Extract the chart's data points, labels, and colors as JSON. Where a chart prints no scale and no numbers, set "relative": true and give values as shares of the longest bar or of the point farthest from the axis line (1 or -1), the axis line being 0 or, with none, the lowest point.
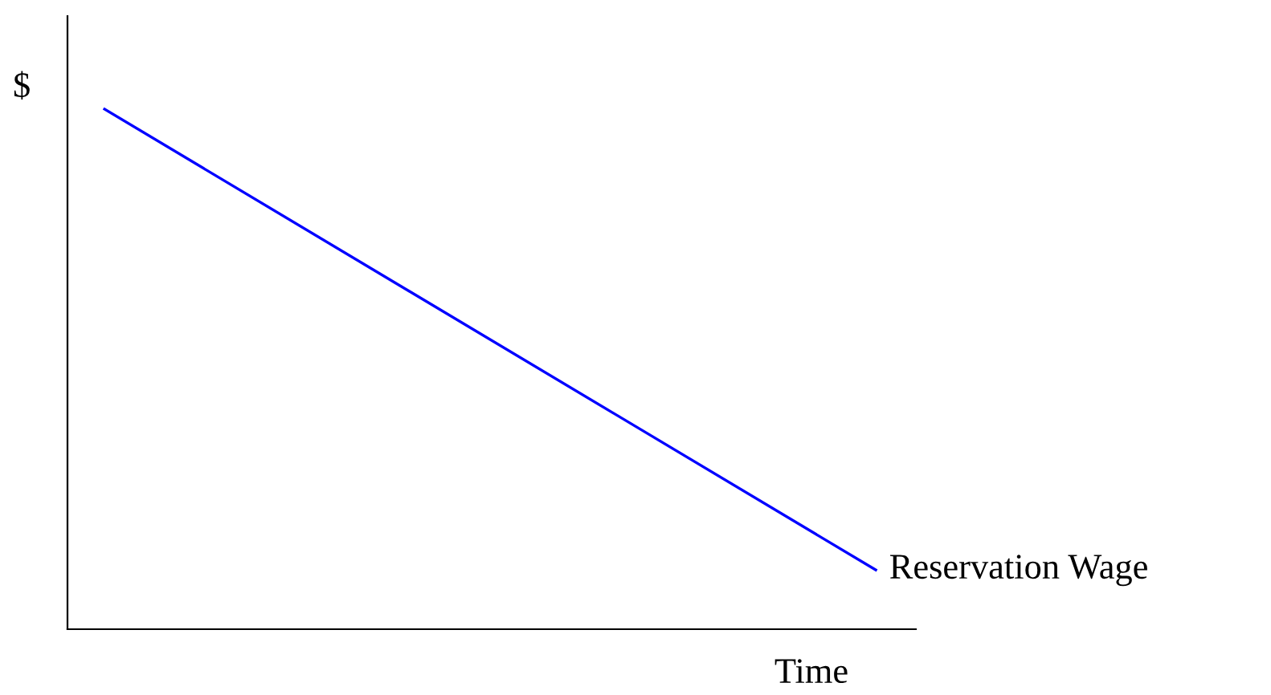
{
  "chart_data": {
    "type": "line",
    "xlabel": "Time",
    "ylabel": "$",
    "relative": true,
    "categories": [
      null,
      null
    ],
    "series": [
      {
        "name": "Reservation Wage",
        "color": "#0000ff",
        "values": [
          1,
          0.114
        ]
      }
    ],
    "grid": false,
    "legend": false,
    "marker": "none",
    "line_style": "solid"
  }
}
